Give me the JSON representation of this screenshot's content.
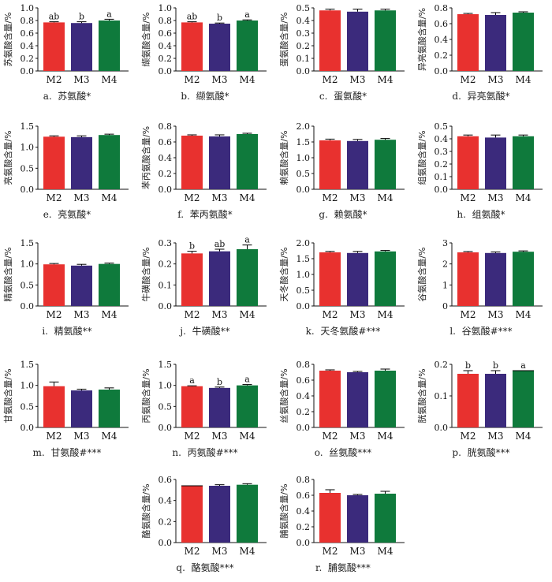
{
  "colors": {
    "M2": "#e8312f",
    "M3": "#3b2a7c",
    "M4": "#0f7a3c",
    "axis": "#111111"
  },
  "chart_data": [
    {
      "id": "a",
      "type": "bar",
      "letter": "a.",
      "caption": "苏氨酸*",
      "ylabel": "苏氨酸含量/%",
      "categories": [
        "M2",
        "M3",
        "M4"
      ],
      "values": [
        0.77,
        0.76,
        0.8
      ],
      "errors": [
        0.01,
        0.02,
        0.02
      ],
      "sig": [
        "ab",
        "b",
        "a"
      ],
      "ylim": [
        0,
        1.0
      ],
      "yticks": [
        "0.0",
        "0.2",
        "0.4",
        "0.6",
        "0.8",
        "1.0"
      ]
    },
    {
      "id": "b",
      "type": "bar",
      "letter": "b.",
      "caption": "缬氨酸*",
      "ylabel": "缬氨酸含量/%",
      "categories": [
        "M2",
        "M3",
        "M4"
      ],
      "values": [
        0.77,
        0.75,
        0.8
      ],
      "errors": [
        0.01,
        0.01,
        0.01
      ],
      "sig": [
        "ab",
        "b",
        "a"
      ],
      "ylim": [
        0,
        1.0
      ],
      "yticks": [
        "0.0",
        "0.2",
        "0.4",
        "0.6",
        "0.8",
        "1.0"
      ]
    },
    {
      "id": "c",
      "type": "bar",
      "letter": "c.",
      "caption": "蛋氨酸*",
      "ylabel": "蛋氨酸含量/%",
      "categories": [
        "M2",
        "M3",
        "M4"
      ],
      "values": [
        0.48,
        0.47,
        0.48
      ],
      "errors": [
        0.01,
        0.02,
        0.01
      ],
      "sig": [
        "",
        "",
        ""
      ],
      "ylim": [
        0,
        0.5
      ],
      "yticks": [
        "0.0",
        "0.1",
        "0.2",
        "0.3",
        "0.4",
        "0.5"
      ]
    },
    {
      "id": "d",
      "type": "bar",
      "letter": "d.",
      "caption": "异亮氨酸*",
      "ylabel": "异亮氨酸含量/%",
      "categories": [
        "M2",
        "M3",
        "M4"
      ],
      "values": [
        0.72,
        0.71,
        0.74
      ],
      "errors": [
        0.01,
        0.03,
        0.01
      ],
      "sig": [
        "",
        "",
        ""
      ],
      "ylim": [
        0,
        0.8
      ],
      "yticks": [
        "0.0",
        "0.2",
        "0.4",
        "0.6",
        "0.8"
      ]
    },
    {
      "id": "e",
      "type": "bar",
      "letter": "e.",
      "caption": "亮氨酸*",
      "ylabel": "亮氨酸含量/%",
      "categories": [
        "M2",
        "M3",
        "M4"
      ],
      "values": [
        1.25,
        1.24,
        1.29
      ],
      "errors": [
        0.02,
        0.03,
        0.02
      ],
      "sig": [
        "",
        "",
        ""
      ],
      "ylim": [
        0,
        1.5
      ],
      "yticks": [
        "0.0",
        "0.5",
        "1.0",
        "1.5"
      ]
    },
    {
      "id": "f",
      "type": "bar",
      "letter": "f.",
      "caption": "苯丙氨酸*",
      "ylabel": "苯丙氨酸含量/%",
      "categories": [
        "M2",
        "M3",
        "M4"
      ],
      "values": [
        0.68,
        0.67,
        0.7
      ],
      "errors": [
        0.01,
        0.02,
        0.01
      ],
      "sig": [
        "",
        "",
        ""
      ],
      "ylim": [
        0,
        0.8
      ],
      "yticks": [
        "0.0",
        "0.2",
        "0.4",
        "0.6",
        "0.8"
      ]
    },
    {
      "id": "g",
      "type": "bar",
      "letter": "g.",
      "caption": "赖氨酸*",
      "ylabel": "赖氨酸含量/%",
      "categories": [
        "M2",
        "M3",
        "M4"
      ],
      "values": [
        1.55,
        1.53,
        1.57
      ],
      "errors": [
        0.04,
        0.05,
        0.04
      ],
      "sig": [
        "",
        "",
        ""
      ],
      "ylim": [
        0,
        2.0
      ],
      "yticks": [
        "0.0",
        "0.5",
        "1.0",
        "1.5",
        "2.0"
      ]
    },
    {
      "id": "h",
      "type": "bar",
      "letter": "h.",
      "caption": "组氨酸*",
      "ylabel": "组氨酸含量/%",
      "categories": [
        "M2",
        "M3",
        "M4"
      ],
      "values": [
        0.42,
        0.41,
        0.42
      ],
      "errors": [
        0.01,
        0.02,
        0.01
      ],
      "sig": [
        "",
        "",
        ""
      ],
      "ylim": [
        0,
        0.5
      ],
      "yticks": [
        "0.0",
        "0.1",
        "0.2",
        "0.3",
        "0.4",
        "0.5"
      ]
    },
    {
      "id": "i",
      "type": "bar",
      "letter": "i.",
      "caption": "精氨酸**",
      "ylabel": "精氨酸含量/%",
      "categories": [
        "M2",
        "M3",
        "M4"
      ],
      "values": [
        0.99,
        0.96,
        1.0
      ],
      "errors": [
        0.02,
        0.03,
        0.02
      ],
      "sig": [
        "",
        "",
        ""
      ],
      "ylim": [
        0,
        1.5
      ],
      "yticks": [
        "0.0",
        "0.5",
        "1.0",
        "1.5"
      ]
    },
    {
      "id": "j",
      "type": "bar",
      "letter": "j.",
      "caption": "牛磺酸**",
      "ylabel": "牛磺酸含量/%",
      "categories": [
        "M2",
        "M3",
        "M4"
      ],
      "values": [
        0.25,
        0.26,
        0.27
      ],
      "errors": [
        0.01,
        0.01,
        0.02
      ],
      "sig": [
        "b",
        "ab",
        "a"
      ],
      "ylim": [
        0,
        0.3
      ],
      "yticks": [
        "0.0",
        "0.1",
        "0.2",
        "0.3"
      ]
    },
    {
      "id": "k",
      "type": "bar",
      "letter": "k.",
      "caption": "天冬氨酸#***",
      "ylabel": "天冬酸含量/%",
      "categories": [
        "M2",
        "M3",
        "M4"
      ],
      "values": [
        1.7,
        1.68,
        1.73
      ],
      "errors": [
        0.03,
        0.05,
        0.03
      ],
      "sig": [
        "",
        "",
        ""
      ],
      "ylim": [
        0,
        2.0
      ],
      "yticks": [
        "0.0",
        "0.5",
        "1.0",
        "1.5",
        "2.0"
      ]
    },
    {
      "id": "l",
      "type": "bar",
      "letter": "l.",
      "caption": "谷氨酸#***",
      "ylabel": "谷氨酸含量/%",
      "categories": [
        "M2",
        "M3",
        "M4"
      ],
      "values": [
        2.55,
        2.52,
        2.58
      ],
      "errors": [
        0.04,
        0.05,
        0.04
      ],
      "sig": [
        "",
        "",
        ""
      ],
      "ylim": [
        0,
        3
      ],
      "yticks": [
        "0",
        "1",
        "2",
        "3"
      ]
    },
    {
      "id": "m",
      "type": "bar",
      "letter": "m.",
      "caption": "甘氨酸#***",
      "ylabel": "甘氨酸含量/%",
      "categories": [
        "M2",
        "M3",
        "M4"
      ],
      "values": [
        0.98,
        0.88,
        0.9
      ],
      "errors": [
        0.1,
        0.03,
        0.04
      ],
      "sig": [
        "",
        "",
        ""
      ],
      "ylim": [
        0,
        1.5
      ],
      "yticks": [
        "0.0",
        "0.5",
        "1.0",
        "1.5"
      ]
    },
    {
      "id": "n",
      "type": "bar",
      "letter": "n.",
      "caption": "丙氨酸#***",
      "ylabel": "丙氨酸含量/%",
      "categories": [
        "M2",
        "M3",
        "M4"
      ],
      "values": [
        0.98,
        0.94,
        1.0
      ],
      "errors": [
        0.01,
        0.02,
        0.02
      ],
      "sig": [
        "a",
        "b",
        "a"
      ],
      "ylim": [
        0,
        1.5
      ],
      "yticks": [
        "0.0",
        "0.5",
        "1.0",
        "1.5"
      ]
    },
    {
      "id": "o",
      "type": "bar",
      "letter": "o.",
      "caption": "丝氨酸***",
      "ylabel": "丝氨酸含量/%",
      "categories": [
        "M2",
        "M3",
        "M4"
      ],
      "values": [
        0.72,
        0.7,
        0.72
      ],
      "errors": [
        0.01,
        0.01,
        0.02
      ],
      "sig": [
        "",
        "",
        ""
      ],
      "ylim": [
        0,
        0.8
      ],
      "yticks": [
        "0.0",
        "0.2",
        "0.4",
        "0.6",
        "0.8"
      ]
    },
    {
      "id": "p",
      "type": "bar",
      "letter": "p.",
      "caption": "胱氨酸***",
      "ylabel": "胱氨酸含量/%",
      "categories": [
        "M2",
        "M3",
        "M4"
      ],
      "values": [
        0.17,
        0.17,
        0.18
      ],
      "errors": [
        0.01,
        0.01,
        0.0
      ],
      "sig": [
        "b",
        "b",
        "a"
      ],
      "ylim": [
        0,
        0.2
      ],
      "yticks": [
        "0.0",
        "0.1",
        "0.2"
      ]
    },
    {
      "id": "q",
      "type": "bar",
      "letter": "q.",
      "caption": "酪氨酸***",
      "ylabel": "酪氨酸含量/%",
      "categories": [
        "M2",
        "M3",
        "M4"
      ],
      "values": [
        0.54,
        0.54,
        0.55
      ],
      "errors": [
        0.0,
        0.01,
        0.01
      ],
      "sig": [
        "",
        "",
        ""
      ],
      "ylim": [
        0,
        0.6
      ],
      "yticks": [
        "0.0",
        "0.2",
        "0.4",
        "0.6"
      ]
    },
    {
      "id": "r",
      "type": "bar",
      "letter": "r.",
      "caption": "脯氨酸***",
      "ylabel": "脯氨酸含量/%",
      "categories": [
        "M2",
        "M3",
        "M4"
      ],
      "values": [
        0.63,
        0.6,
        0.62
      ],
      "errors": [
        0.04,
        0.01,
        0.03
      ],
      "sig": [
        "",
        "",
        ""
      ],
      "ylim": [
        0,
        0.8
      ],
      "yticks": [
        "0.0",
        "0.2",
        "0.4",
        "0.6",
        "0.8"
      ]
    }
  ]
}
